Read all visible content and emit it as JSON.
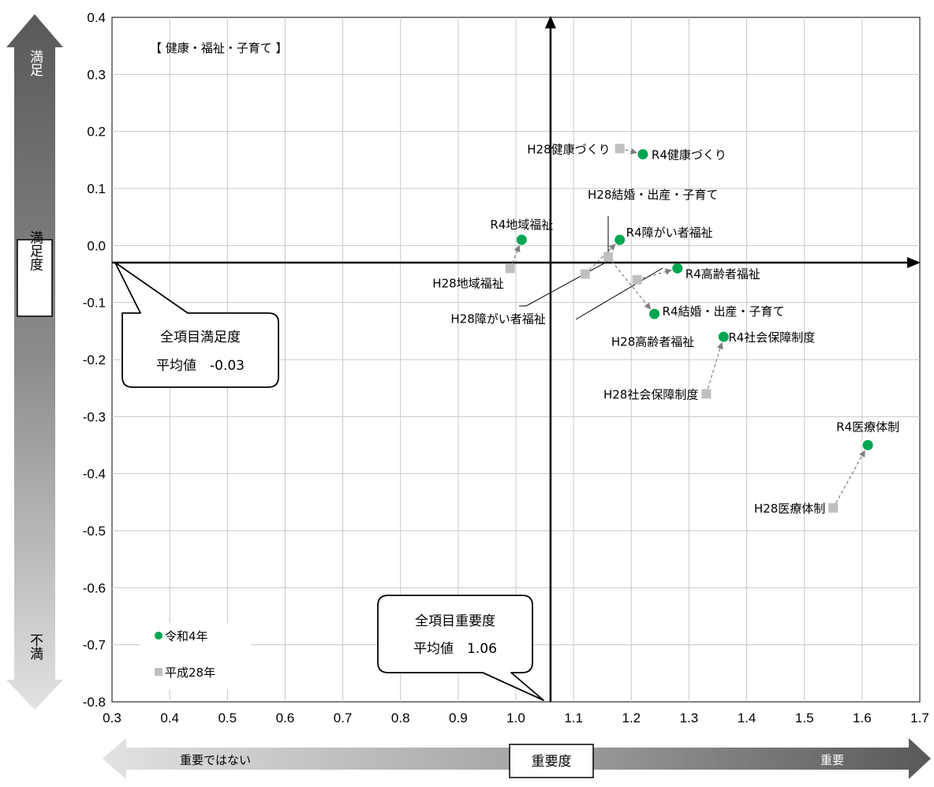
{
  "chart_data": {
    "type": "scatter",
    "title": "【 健康・福祉・子育て 】",
    "x_range": [
      0.3,
      1.7
    ],
    "y_range": [
      -0.8,
      0.4
    ],
    "x_ticks": [
      "0.3",
      "0.4",
      "0.5",
      "0.6",
      "0.7",
      "0.8",
      "0.9",
      "1.0",
      "1.1",
      "1.2",
      "1.3",
      "1.4",
      "1.5",
      "1.6",
      "1.7"
    ],
    "y_ticks": [
      "0.4",
      "0.3",
      "0.2",
      "0.1",
      "0.0",
      "-0.1",
      "-0.2",
      "-0.3",
      "-0.4",
      "-0.5",
      "-0.6",
      "-0.7",
      "-0.8"
    ],
    "grid": true,
    "legend_position": "bottom-left",
    "colors": {
      "R4": "#00a651",
      "H28": "#bfbfbf"
    },
    "series": [
      {
        "name": "令和4年",
        "marker": "circle",
        "points": [
          {
            "label": "R4健康づくり",
            "x": 1.22,
            "y": 0.16
          },
          {
            "label": "R4地域福祉",
            "x": 1.01,
            "y": 0.01
          },
          {
            "label": "R4障がい者福祉",
            "x": 1.18,
            "y": 0.01
          },
          {
            "label": "R4高齢者福祉",
            "x": 1.28,
            "y": -0.04
          },
          {
            "label": "R4結婚・出産・子育て",
            "x": 1.24,
            "y": -0.12
          },
          {
            "label": "R4社会保障制度",
            "x": 1.36,
            "y": -0.16
          },
          {
            "label": "R4医療体制",
            "x": 1.61,
            "y": -0.35
          }
        ]
      },
      {
        "name": "平成28年",
        "marker": "square",
        "points": [
          {
            "label": "H28健康づくり",
            "x": 1.18,
            "y": 0.17
          },
          {
            "label": "H28地域福祉",
            "x": 0.99,
            "y": -0.04
          },
          {
            "label": "H28障がい者福祉",
            "x": 1.12,
            "y": -0.05
          },
          {
            "label": "H28高齢者福祉",
            "x": 1.21,
            "y": -0.06
          },
          {
            "label": "H28結婚・出産・子育て",
            "x": 1.16,
            "y": -0.02
          },
          {
            "label": "H28社会保障制度",
            "x": 1.33,
            "y": -0.26
          },
          {
            "label": "H28医療体制",
            "x": 1.55,
            "y": -0.46
          }
        ]
      }
    ],
    "averages": {
      "satisfaction": {
        "text1": "全項目満足度",
        "text2": "平均値　-0.03",
        "value": -0.03
      },
      "importance": {
        "text1": "全項目重要度",
        "text2": "平均値　1.06",
        "value": 1.06
      }
    },
    "y_axis": {
      "label": "満足度",
      "top": "満足",
      "bottom": "不満"
    },
    "x_axis": {
      "label": "重要度",
      "left": "重要ではない",
      "right": "重要"
    }
  }
}
